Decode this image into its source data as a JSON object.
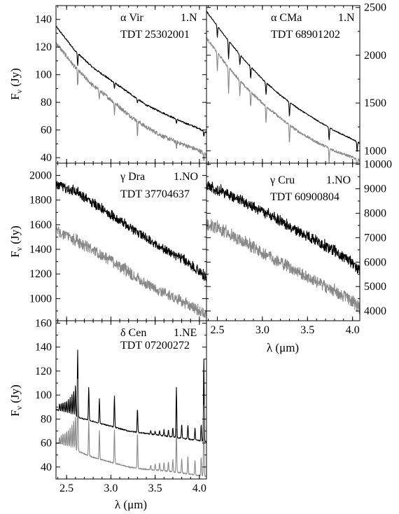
{
  "chart_data": [
    {
      "type": "line",
      "star": "α Vir",
      "aot": "1.N",
      "tdt": "TDT 25302001",
      "yaxis_side": "left",
      "yticks": [
        40,
        60,
        80,
        100,
        120,
        140
      ],
      "ylim": [
        36,
        150
      ],
      "ylabel": "Fν (Jy)",
      "ylabel_main": "F",
      "ylabel_sub": "ν",
      "ylabel_unit": " (Jy)",
      "xlim": [
        2.38,
        4.08
      ],
      "xlabel": "",
      "series": [
        {
          "color": "#000000",
          "x": [
            2.38,
            2.6,
            2.8,
            3.0,
            3.2,
            3.4,
            3.6,
            3.8,
            4.0,
            4.08
          ],
          "values": [
            135,
            117,
            105,
            96,
            87,
            78,
            72,
            66,
            61,
            58
          ],
          "features": [
            [
              2.625,
              -9
            ],
            [
              3.04,
              -4
            ],
            [
              3.3,
              -3
            ],
            [
              3.74,
              -3
            ],
            [
              4.05,
              -4
            ]
          ],
          "noise": 0.6
        },
        {
          "color": "#888888",
          "x": [
            2.38,
            2.6,
            2.8,
            3.0,
            3.2,
            3.4,
            3.6,
            3.8,
            4.0,
            4.08
          ],
          "values": [
            123,
            105,
            92,
            82,
            71,
            62,
            55,
            50,
            45,
            42
          ],
          "features": [
            [
              2.625,
              -12
            ],
            [
              2.87,
              -5
            ],
            [
              3.04,
              -8
            ],
            [
              3.3,
              -10
            ],
            [
              3.74,
              -5
            ],
            [
              4.05,
              -6
            ]
          ],
          "noise": 1.5
        }
      ]
    },
    {
      "type": "line",
      "star": "α CMa",
      "aot": "1.N",
      "tdt": "TDT 68901202",
      "yaxis_side": "right",
      "yticks": [
        1000,
        1500,
        2000,
        2500
      ],
      "ylim": [
        870,
        2520
      ],
      "ylabel": "",
      "xlim": [
        2.38,
        4.08
      ],
      "xlabel": "",
      "series": [
        {
          "color": "#000000",
          "x": [
            2.38,
            2.6,
            2.8,
            3.0,
            3.2,
            3.4,
            3.6,
            3.8,
            4.0,
            4.08
          ],
          "values": [
            2460,
            2180,
            1950,
            1750,
            1580,
            1440,
            1320,
            1210,
            1120,
            1080
          ],
          "features": [
            [
              2.5,
              -120
            ],
            [
              2.625,
              -190
            ],
            [
              2.75,
              -110
            ],
            [
              2.87,
              -120
            ],
            [
              3.04,
              -130
            ],
            [
              3.3,
              -150
            ],
            [
              3.74,
              -130
            ],
            [
              4.05,
              -100
            ]
          ],
          "noise": 6
        },
        {
          "color": "#888888",
          "x": [
            2.38,
            2.6,
            2.8,
            3.0,
            3.2,
            3.4,
            3.6,
            3.8,
            4.0,
            4.08
          ],
          "values": [
            2180,
            1900,
            1680,
            1500,
            1340,
            1200,
            1090,
            1000,
            930,
            900
          ],
          "features": [
            [
              2.5,
              -200
            ],
            [
              2.625,
              -280
            ],
            [
              2.75,
              -150
            ],
            [
              2.87,
              -160
            ],
            [
              3.04,
              -180
            ],
            [
              3.3,
              -190
            ],
            [
              3.74,
              -150
            ],
            [
              4.05,
              -120
            ]
          ],
          "noise": 14
        }
      ]
    },
    {
      "type": "line",
      "star": "γ Dra",
      "aot": "1.NO",
      "tdt": "TDT 37704637",
      "yaxis_side": "left",
      "yticks": [
        1000,
        1200,
        1400,
        1600,
        1800,
        2000
      ],
      "ylim": [
        820,
        2100
      ],
      "ylabel": "Fν (Jy)",
      "ylabel_main": "F",
      "ylabel_sub": "ν",
      "ylabel_unit": " (Jy)",
      "xlim": [
        2.38,
        4.08
      ],
      "xlabel": "",
      "series": [
        {
          "color": "#000000",
          "x": [
            2.38,
            2.5,
            2.6,
            2.8,
            3.0,
            3.2,
            3.4,
            3.6,
            3.8,
            4.0,
            4.08
          ],
          "values": [
            1940,
            1900,
            1880,
            1780,
            1690,
            1590,
            1500,
            1410,
            1330,
            1230,
            1170
          ],
          "features": [],
          "noise": 45
        },
        {
          "color": "#888888",
          "x": [
            2.38,
            2.5,
            2.6,
            2.8,
            3.0,
            3.2,
            3.4,
            3.6,
            3.8,
            4.0,
            4.08
          ],
          "values": [
            1560,
            1520,
            1480,
            1400,
            1320,
            1220,
            1130,
            1060,
            990,
            910,
            870
          ],
          "features": [],
          "noise": 55
        }
      ]
    },
    {
      "type": "line",
      "star": "γ Cru",
      "aot": "1.NO",
      "tdt": "TDT 60900804",
      "yaxis_side": "right",
      "yticks": [
        4000,
        5000,
        6000,
        7000,
        8000,
        9000,
        10000
      ],
      "ylim": [
        3600,
        10050
      ],
      "ylabel": "",
      "xlim": [
        2.38,
        4.08
      ],
      "xlabel": "λ (μm)",
      "xticks": [
        2.5,
        3.0,
        3.5,
        4.0
      ],
      "xticklabels": [
        "2.5",
        "3.0",
        "3.5",
        "4.0"
      ],
      "series": [
        {
          "color": "#000000",
          "x": [
            2.38,
            2.5,
            2.6,
            2.8,
            3.0,
            3.2,
            3.4,
            3.6,
            3.8,
            4.0,
            4.08
          ],
          "values": [
            9150,
            9000,
            8850,
            8500,
            8100,
            7700,
            7300,
            6900,
            6500,
            6000,
            5700
          ],
          "features": [],
          "noise": 260
        },
        {
          "color": "#888888",
          "x": [
            2.38,
            2.5,
            2.6,
            2.8,
            3.0,
            3.2,
            3.4,
            3.6,
            3.8,
            4.0,
            4.08
          ],
          "values": [
            7600,
            7450,
            7250,
            6850,
            6450,
            6050,
            5650,
            5250,
            4850,
            4450,
            4150
          ],
          "features": [],
          "noise": 300
        }
      ]
    },
    {
      "type": "line",
      "star": "δ Cen",
      "aot": "1.NE",
      "tdt": "TDT 07200272",
      "yaxis_side": "left",
      "yticks": [
        40,
        60,
        80,
        100,
        120,
        140,
        160
      ],
      "ylim": [
        30,
        162
      ],
      "ylabel": "Fν (Jy)",
      "ylabel_main": "F",
      "ylabel_sub": "ν",
      "ylabel_unit": " (Jy)",
      "xlim": [
        2.38,
        4.08
      ],
      "xlabel": "λ (μm)",
      "xticks": [
        2.5,
        3.0,
        3.5,
        4.0
      ],
      "xticklabels": [
        "2.5",
        "3.0",
        "3.5",
        "4.0"
      ],
      "series": [
        {
          "color": "#000000",
          "x": [
            2.38,
            2.6,
            2.8,
            3.0,
            3.2,
            3.4,
            3.6,
            3.8,
            4.0,
            4.08
          ],
          "values": [
            88,
            82,
            78,
            74,
            70,
            68,
            66,
            64,
            62,
            61
          ],
          "features": [
            [
              2.42,
              6
            ],
            [
              2.44,
              7
            ],
            [
              2.46,
              8
            ],
            [
              2.48,
              9
            ],
            [
              2.5,
              10
            ],
            [
              2.52,
              12
            ],
            [
              2.54,
              14
            ],
            [
              2.56,
              17
            ],
            [
              2.58,
              21
            ],
            [
              2.6,
              26
            ],
            [
              2.625,
              56
            ],
            [
              2.75,
              28
            ],
            [
              2.87,
              20
            ],
            [
              3.04,
              26
            ],
            [
              3.3,
              20
            ],
            [
              3.45,
              3
            ],
            [
              3.5,
              3
            ],
            [
              3.55,
              4
            ],
            [
              3.6,
              5
            ],
            [
              3.65,
              6
            ],
            [
              3.7,
              8
            ],
            [
              3.74,
              42
            ],
            [
              3.8,
              12
            ],
            [
              3.87,
              12
            ],
            [
              3.95,
              10
            ],
            [
              4.02,
              14
            ],
            [
              4.05,
              70
            ]
          ],
          "noise": 0.5
        },
        {
          "color": "#888888",
          "x": [
            2.38,
            2.6,
            2.8,
            3.0,
            3.2,
            3.4,
            3.6,
            3.8,
            4.0,
            4.08
          ],
          "values": [
            60,
            54,
            48,
            44,
            40,
            38,
            37,
            35,
            33,
            32
          ],
          "features": [
            [
              2.42,
              6
            ],
            [
              2.44,
              8
            ],
            [
              2.46,
              10
            ],
            [
              2.48,
              11
            ],
            [
              2.5,
              13
            ],
            [
              2.52,
              15
            ],
            [
              2.54,
              17
            ],
            [
              2.56,
              20
            ],
            [
              2.58,
              24
            ],
            [
              2.6,
              28
            ],
            [
              2.625,
              60
            ],
            [
              2.75,
              30
            ],
            [
              2.87,
              24
            ],
            [
              3.04,
              28
            ],
            [
              3.3,
              30
            ],
            [
              3.45,
              4
            ],
            [
              3.5,
              5
            ],
            [
              3.55,
              6
            ],
            [
              3.6,
              7
            ],
            [
              3.65,
              8
            ],
            [
              3.7,
              10
            ],
            [
              3.74,
              36
            ],
            [
              3.8,
              12
            ],
            [
              3.87,
              14
            ],
            [
              3.95,
              12
            ],
            [
              4.02,
              16
            ],
            [
              4.05,
              60
            ]
          ],
          "noise": 0.5
        }
      ]
    }
  ]
}
